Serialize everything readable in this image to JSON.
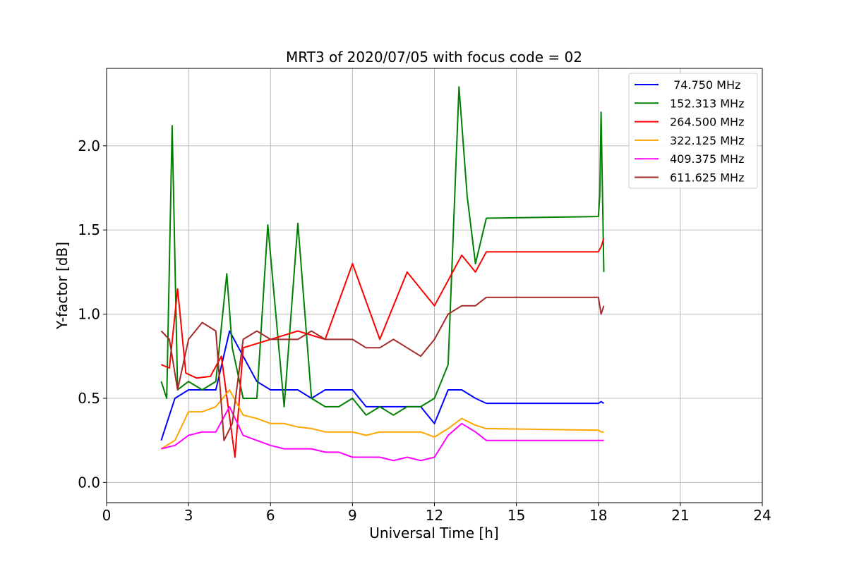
{
  "chart_data": {
    "type": "line",
    "title": "MRT3 of 2020/07/05 with focus code = 02",
    "xlabel": "Universal Time [h]",
    "ylabel": "Y-factor [dB]",
    "xlim": [
      0,
      24
    ],
    "ylim": [
      -0.12,
      2.46
    ],
    "xticks": [
      0,
      3,
      6,
      9,
      12,
      15,
      18,
      21,
      24
    ],
    "xtick_labels": [
      "0",
      "3",
      "6",
      "9",
      "12",
      "15",
      "18",
      "21",
      "24"
    ],
    "yticks": [
      0.0,
      0.5,
      1.0,
      1.5,
      2.0
    ],
    "ytick_labels": [
      "0.0",
      "0.5",
      "1.0",
      "1.5",
      "2.0"
    ],
    "grid": true,
    "legend_position": "top-right",
    "series": [
      {
        "name": " 74.750 MHz",
        "color": "#0000ff",
        "x": [
          2.0,
          2.5,
          3.0,
          3.5,
          4.0,
          4.5,
          5.0,
          5.5,
          6.0,
          6.5,
          7.0,
          7.5,
          8.0,
          8.5,
          9.0,
          9.5,
          10.0,
          10.5,
          11.0,
          11.5,
          12.0,
          12.5,
          13.0,
          13.5,
          13.9,
          18.0,
          18.1,
          18.2
        ],
        "y": [
          0.25,
          0.5,
          0.55,
          0.55,
          0.55,
          0.9,
          0.75,
          0.6,
          0.55,
          0.55,
          0.55,
          0.5,
          0.55,
          0.55,
          0.55,
          0.45,
          0.45,
          0.45,
          0.45,
          0.45,
          0.35,
          0.55,
          0.55,
          0.5,
          0.47,
          0.47,
          0.48,
          0.47
        ]
      },
      {
        "name": "152.313 MHz",
        "color": "#008000",
        "x": [
          2.0,
          2.2,
          2.4,
          2.6,
          3.0,
          3.5,
          4.0,
          4.4,
          4.6,
          5.0,
          5.5,
          5.9,
          6.5,
          7.0,
          7.5,
          8.0,
          8.5,
          9.0,
          9.5,
          10.0,
          10.5,
          11.0,
          11.5,
          12.0,
          12.5,
          12.9,
          13.2,
          13.5,
          13.9,
          18.0,
          18.05,
          18.1,
          18.2
        ],
        "y": [
          0.6,
          0.5,
          2.12,
          0.55,
          0.6,
          0.55,
          0.6,
          1.24,
          0.8,
          0.5,
          0.5,
          1.53,
          0.45,
          1.54,
          0.5,
          0.45,
          0.45,
          0.5,
          0.4,
          0.45,
          0.4,
          0.45,
          0.45,
          0.5,
          0.7,
          2.35,
          1.7,
          1.3,
          1.57,
          1.58,
          1.7,
          2.2,
          1.25
        ]
      },
      {
        "name": "264.500 MHz",
        "color": "#ff0000",
        "x": [
          2.0,
          2.3,
          2.6,
          2.9,
          3.3,
          3.8,
          4.2,
          4.7,
          5.0,
          6.0,
          7.0,
          8.0,
          9.0,
          10.0,
          11.0,
          12.0,
          12.5,
          13.0,
          13.5,
          13.9,
          18.0,
          18.1,
          18.2
        ],
        "y": [
          0.7,
          0.68,
          1.15,
          0.65,
          0.62,
          0.63,
          0.75,
          0.15,
          0.8,
          0.85,
          0.9,
          0.85,
          1.3,
          0.85,
          1.25,
          1.05,
          1.2,
          1.35,
          1.25,
          1.37,
          1.37,
          1.4,
          1.45
        ]
      },
      {
        "name": "322.125 MHz",
        "color": "#ffa500",
        "x": [
          2.0,
          2.5,
          3.0,
          3.5,
          4.0,
          4.5,
          5.0,
          5.5,
          6.0,
          6.5,
          7.0,
          7.5,
          8.0,
          8.5,
          9.0,
          9.5,
          10.0,
          10.5,
          11.0,
          11.5,
          12.0,
          12.5,
          13.0,
          13.5,
          13.9,
          18.0,
          18.1,
          18.2
        ],
        "y": [
          0.2,
          0.25,
          0.42,
          0.42,
          0.45,
          0.55,
          0.4,
          0.38,
          0.35,
          0.35,
          0.33,
          0.32,
          0.3,
          0.3,
          0.3,
          0.28,
          0.3,
          0.3,
          0.3,
          0.3,
          0.27,
          0.32,
          0.38,
          0.34,
          0.32,
          0.31,
          0.3,
          0.3
        ]
      },
      {
        "name": "409.375 MHz",
        "color": "#ff00ff",
        "x": [
          2.0,
          2.5,
          3.0,
          3.5,
          4.0,
          4.5,
          5.0,
          5.5,
          6.0,
          6.5,
          7.0,
          7.5,
          8.0,
          8.5,
          9.0,
          9.5,
          10.0,
          10.5,
          11.0,
          11.5,
          12.0,
          12.5,
          13.0,
          13.5,
          13.9,
          18.0,
          18.1,
          18.2
        ],
        "y": [
          0.2,
          0.22,
          0.28,
          0.3,
          0.3,
          0.45,
          0.28,
          0.25,
          0.22,
          0.2,
          0.2,
          0.2,
          0.18,
          0.18,
          0.15,
          0.15,
          0.15,
          0.13,
          0.15,
          0.13,
          0.15,
          0.28,
          0.35,
          0.3,
          0.25,
          0.25,
          0.25,
          0.25
        ]
      },
      {
        "name": "611.625 MHz",
        "color": "#a52a2a",
        "x": [
          2.0,
          2.3,
          2.6,
          3.0,
          3.5,
          4.0,
          4.3,
          4.6,
          5.0,
          5.5,
          6.0,
          6.5,
          7.0,
          7.5,
          8.0,
          8.5,
          9.0,
          9.5,
          10.0,
          10.5,
          11.0,
          11.5,
          12.0,
          12.5,
          13.0,
          13.5,
          13.9,
          18.0,
          18.1,
          18.2
        ],
        "y": [
          0.9,
          0.85,
          0.55,
          0.85,
          0.95,
          0.9,
          0.25,
          0.35,
          0.85,
          0.9,
          0.85,
          0.85,
          0.85,
          0.9,
          0.85,
          0.85,
          0.85,
          0.8,
          0.8,
          0.85,
          0.8,
          0.75,
          0.85,
          1.0,
          1.05,
          1.05,
          1.1,
          1.1,
          1.0,
          1.05
        ]
      }
    ]
  }
}
